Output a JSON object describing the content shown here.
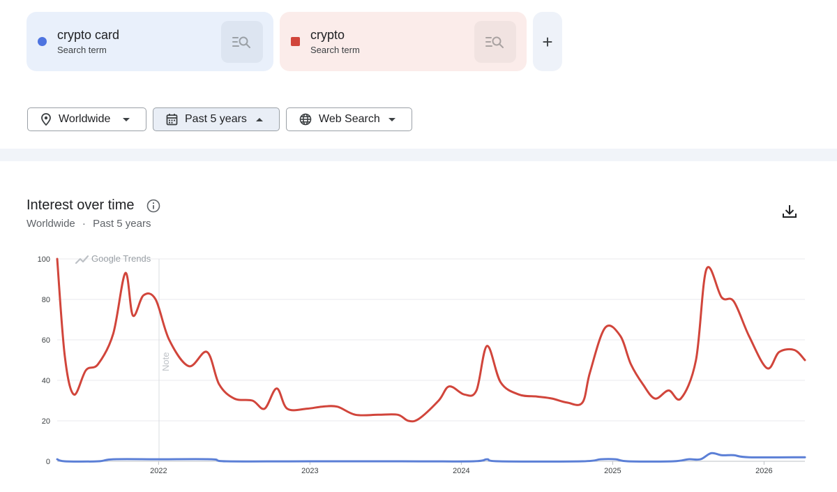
{
  "terms": [
    {
      "name": "crypto card",
      "subtitle": "Search term",
      "color": "#4e74e0"
    },
    {
      "name": "crypto",
      "subtitle": "Search term",
      "color": "#d1453b"
    }
  ],
  "add_term_label": "+",
  "filters": {
    "region": "Worldwide",
    "time_range": "Past 5 years",
    "search_type": "Web Search"
  },
  "chart_header": {
    "title": "Interest over time",
    "subtitle_region": "Worldwide",
    "subtitle_separator": "·",
    "subtitle_range": "Past 5 years",
    "watermark": "Google Trends",
    "note": "Note"
  },
  "chart_data": {
    "type": "line",
    "ylim": [
      0,
      100
    ],
    "y_ticks": [
      "100",
      "80",
      "60",
      "40",
      "20",
      "0"
    ],
    "x_ticks": [
      "2022",
      "2023",
      "2024",
      "2025",
      "2026"
    ],
    "grid": true,
    "xlim": [
      2021.33,
      2026.27
    ],
    "series": [
      {
        "name": "crypto",
        "color": "#d1453b",
        "points": [
          [
            2021.33,
            100
          ],
          [
            2021.38,
            52
          ],
          [
            2021.44,
            33
          ],
          [
            2021.52,
            45
          ],
          [
            2021.6,
            48
          ],
          [
            2021.7,
            63
          ],
          [
            2021.78,
            93
          ],
          [
            2021.83,
            72
          ],
          [
            2021.9,
            82
          ],
          [
            2021.98,
            80
          ],
          [
            2022.07,
            60
          ],
          [
            2022.2,
            47
          ],
          [
            2022.32,
            54
          ],
          [
            2022.4,
            38
          ],
          [
            2022.5,
            31
          ],
          [
            2022.62,
            30
          ],
          [
            2022.7,
            26
          ],
          [
            2022.78,
            36
          ],
          [
            2022.85,
            26
          ],
          [
            2022.98,
            26
          ],
          [
            2023.08,
            27
          ],
          [
            2023.18,
            27
          ],
          [
            2023.3,
            23
          ],
          [
            2023.45,
            23
          ],
          [
            2023.58,
            23
          ],
          [
            2023.65,
            20
          ],
          [
            2023.72,
            21
          ],
          [
            2023.85,
            30
          ],
          [
            2023.92,
            37
          ],
          [
            2024.02,
            33
          ],
          [
            2024.1,
            35
          ],
          [
            2024.17,
            57
          ],
          [
            2024.26,
            39
          ],
          [
            2024.38,
            33
          ],
          [
            2024.5,
            32
          ],
          [
            2024.6,
            31
          ],
          [
            2024.7,
            29
          ],
          [
            2024.8,
            29
          ],
          [
            2024.85,
            44
          ],
          [
            2024.95,
            66
          ],
          [
            2025.05,
            62
          ],
          [
            2025.12,
            48
          ],
          [
            2025.2,
            38
          ],
          [
            2025.28,
            31
          ],
          [
            2025.37,
            35
          ],
          [
            2025.45,
            31
          ],
          [
            2025.55,
            50
          ],
          [
            2025.62,
            95
          ],
          [
            2025.72,
            81
          ],
          [
            2025.8,
            79
          ],
          [
            2025.9,
            62
          ],
          [
            2026.02,
            46
          ],
          [
            2026.1,
            54
          ],
          [
            2026.2,
            55
          ],
          [
            2026.27,
            50
          ]
        ]
      },
      {
        "name": "crypto card",
        "color": "#5b7fd6",
        "points": [
          [
            2021.33,
            1
          ],
          [
            2021.38,
            0
          ],
          [
            2021.6,
            0
          ],
          [
            2021.7,
            1
          ],
          [
            2022.0,
            1
          ],
          [
            2022.35,
            1
          ],
          [
            2022.45,
            0
          ],
          [
            2023.0,
            0
          ],
          [
            2023.6,
            0
          ],
          [
            2024.08,
            0
          ],
          [
            2024.17,
            1
          ],
          [
            2024.25,
            0
          ],
          [
            2024.8,
            0
          ],
          [
            2024.92,
            1
          ],
          [
            2025.02,
            1
          ],
          [
            2025.1,
            0
          ],
          [
            2025.4,
            0
          ],
          [
            2025.5,
            1
          ],
          [
            2025.58,
            1
          ],
          [
            2025.65,
            4
          ],
          [
            2025.72,
            3
          ],
          [
            2025.8,
            3
          ],
          [
            2025.9,
            2
          ],
          [
            2026.27,
            2
          ]
        ]
      }
    ]
  }
}
